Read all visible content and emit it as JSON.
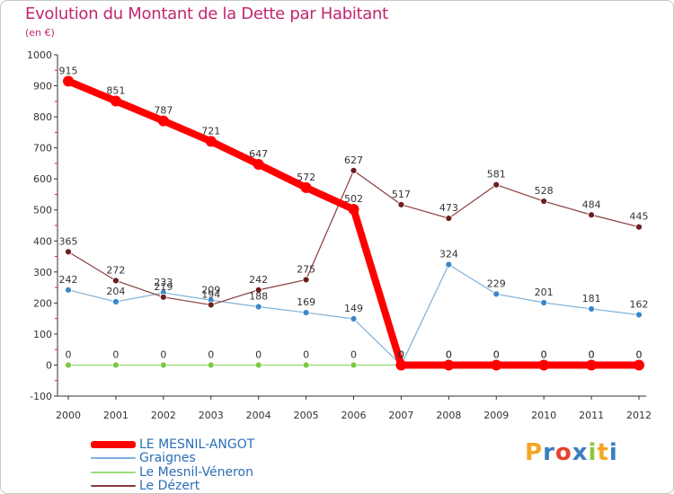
{
  "header": {
    "title": "Evolution du Montant de la Dette par Habitant",
    "subtitle": "(en €)"
  },
  "logo": {
    "text": "Proxiti",
    "letters": [
      {
        "ch": "P",
        "color": "#f5a623"
      },
      {
        "ch": "r",
        "color": "#3a7fc1"
      },
      {
        "ch": "o",
        "color": "#e8412b"
      },
      {
        "ch": "x",
        "color": "#3a7fc1"
      },
      {
        "ch": "i",
        "color": "#8cc63f"
      },
      {
        "ch": "t",
        "color": "#f5a623"
      },
      {
        "ch": "i",
        "color": "#3a7fc1"
      }
    ]
  },
  "chart_data": {
    "type": "line",
    "title": "Evolution du Montant de la Dette par Habitant",
    "subtitle": "(en €)",
    "x": [
      "2000",
      "2001",
      "2002",
      "2003",
      "2004",
      "2005",
      "2006",
      "2007",
      "2008",
      "2009",
      "2010",
      "2011",
      "2012"
    ],
    "ylim": [
      -100,
      1000
    ],
    "yticks": [
      -100,
      0,
      100,
      200,
      300,
      400,
      500,
      600,
      700,
      800,
      900,
      1000
    ],
    "grid": false,
    "legend_position": "bottom-left",
    "series": [
      {
        "name": "LE MESNIL-ANGOT",
        "color": "#ff0000",
        "marker_color": "#ff0000",
        "values": [
          915,
          851,
          787,
          721,
          647,
          572,
          502,
          0,
          0,
          0,
          0,
          0,
          0
        ]
      },
      {
        "name": "Graignes",
        "color": "#7fb0d8",
        "marker_color": "#3a86c8",
        "values": [
          242,
          204,
          233,
          209,
          188,
          169,
          149,
          0,
          324,
          229,
          201,
          181,
          162
        ]
      },
      {
        "name": "Le Mesnil-Véneron",
        "color": "#9ddc7a",
        "marker_color": "#7ac943",
        "values": [
          0,
          0,
          0,
          0,
          0,
          0,
          0,
          0,
          0,
          0,
          0,
          0,
          0
        ]
      },
      {
        "name": "Le Dézert",
        "color": "#8b3a3a",
        "marker_color": "#6b1f1f",
        "values": [
          365,
          272,
          219,
          194,
          242,
          275,
          627,
          517,
          473,
          581,
          528,
          484,
          445
        ]
      }
    ]
  }
}
